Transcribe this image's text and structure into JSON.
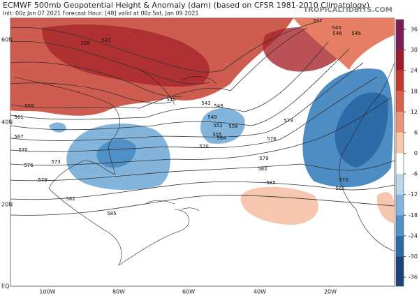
{
  "header": {
    "title": "ECMWF 500mb Geopotential Height & Anomaly (dam) (based on CFSR 1981-2010 Climatology)",
    "subtitle": "Init: 00z Jan 07 2021   Forecast Hour: [48]   valid at 00z Sat, Jan 09 2021",
    "credit": "TROPICALTIDBITS.COM"
  },
  "map": {
    "lat_labels": [
      "60N",
      "40N",
      "20N",
      "EQ"
    ],
    "lon_labels": [
      "100W",
      "80W",
      "60W",
      "40W",
      "20W"
    ],
    "contour_labels": [
      "540",
      "543",
      "546",
      "549",
      "552",
      "555",
      "558",
      "564",
      "570",
      "573",
      "576",
      "579",
      "582",
      "585",
      "570",
      "567",
      "576",
      "573",
      "579",
      "582",
      "585",
      "558",
      "561",
      "567",
      "570",
      "540",
      "546",
      "549",
      "537",
      "531",
      "528"
    ]
  },
  "colorbar": {
    "ticks": [
      36,
      30,
      24,
      18,
      12,
      6,
      0,
      -6,
      -12,
      -18,
      -24,
      -30,
      -36
    ],
    "colors": [
      "#7a1f5c",
      "#9e1b2a",
      "#c0392b",
      "#d9604a",
      "#ec9576",
      "#f6c7ae",
      "#ffffff",
      "#b9d6ea",
      "#83b5dc",
      "#4f90c6",
      "#2d6aa8",
      "#1d3f7a"
    ]
  }
}
